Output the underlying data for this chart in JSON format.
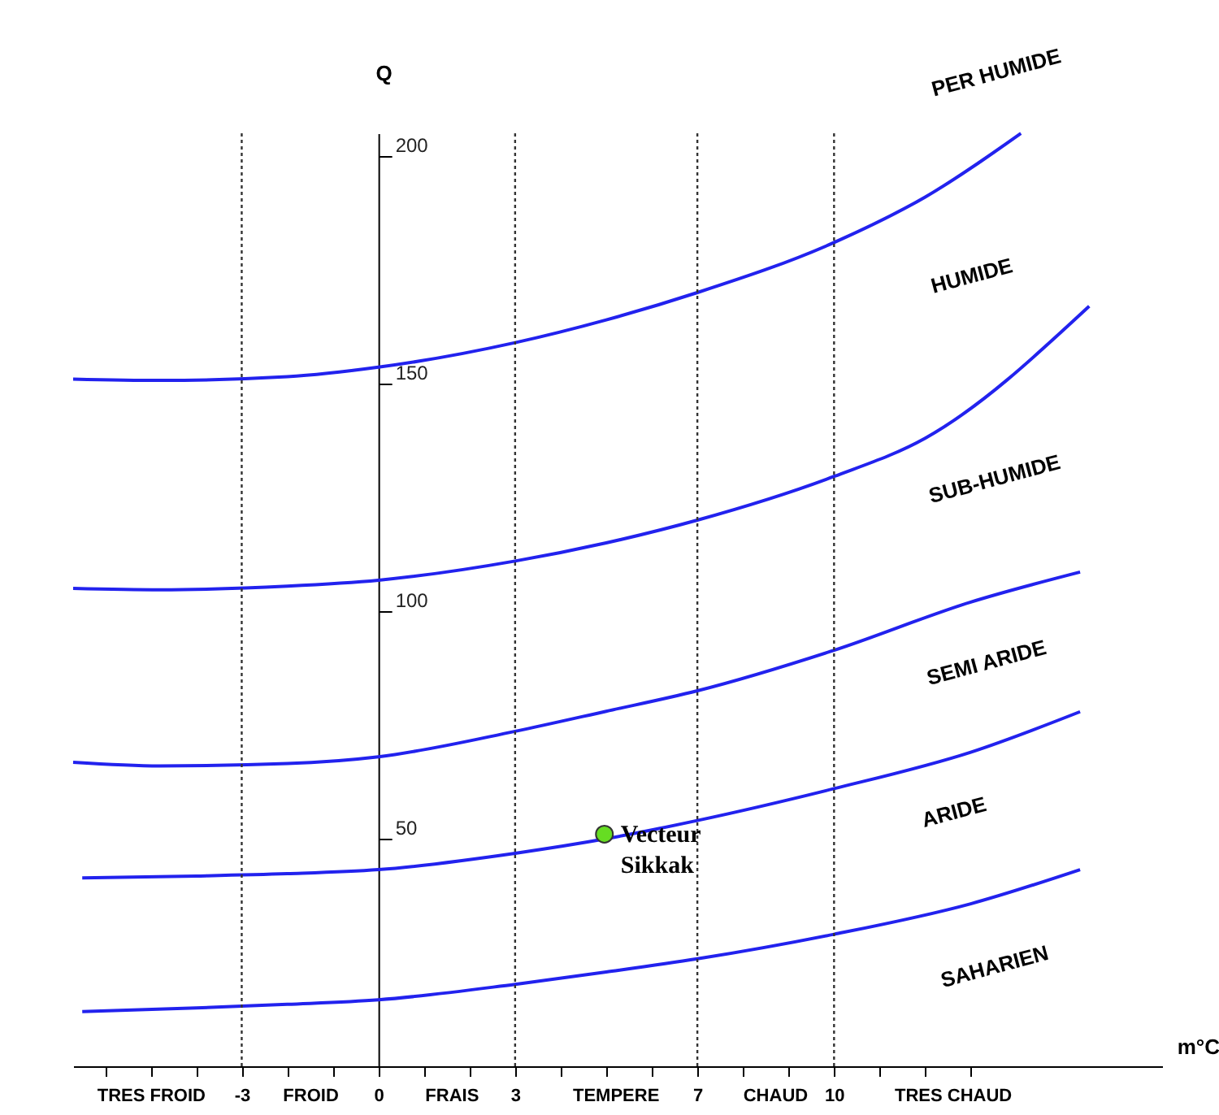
{
  "chart_data": {
    "type": "line",
    "xlabel": "m°C",
    "ylabel": "Q",
    "xlim": [
      -6.7,
      17.2
    ],
    "ylim": [
      0,
      205
    ],
    "xticks": [
      {
        "value": -6,
        "label": null
      },
      {
        "value": -5,
        "label": "TRES FROID"
      },
      {
        "value": -4,
        "label": null
      },
      -3,
      {
        "value": -2,
        "label": null
      },
      {
        "value": -1,
        "label": null
      },
      0,
      {
        "value": 1,
        "label": null
      },
      {
        "value": 2,
        "label": null
      },
      3,
      {
        "value": 4,
        "label": null
      },
      {
        "value": 5,
        "label": null
      },
      {
        "value": 6,
        "label": null
      },
      7,
      {
        "value": 8,
        "label": null
      },
      {
        "value": 9,
        "label": null
      },
      10,
      {
        "value": 11,
        "label": null
      },
      {
        "value": 12,
        "label": null
      },
      {
        "value": 13,
        "label": null
      },
      {
        "value": -1.5,
        "label": "FROID"
      },
      {
        "value": 1.6,
        "label": "FRAIS"
      },
      {
        "value": 5.2,
        "label": "TEMPERE"
      },
      {
        "value": 8.7,
        "label": "CHAUD"
      },
      {
        "value": 12.6,
        "label": "TRES CHAUD"
      }
    ],
    "yticks": [
      50,
      100,
      150,
      200
    ],
    "grid": false,
    "legend": false,
    "marker": "none",
    "line_style": "solid",
    "series": [
      {
        "color": "#2222ee",
        "x": [
          -6.7,
          -4.8,
          -2,
          0,
          3,
          5,
          7,
          10,
          12,
          14.1
        ],
        "values": [
          151,
          150.7,
          151.5,
          153.6,
          159,
          164,
          170,
          181,
          191,
          205
        ]
      },
      {
        "color": "#2222ee",
        "x": [
          -6.7,
          -4.8,
          -2,
          0,
          3,
          5,
          7,
          10,
          12,
          15.6
        ],
        "values": [
          105,
          104.7,
          105.5,
          106.8,
          111,
          115,
          120,
          129.6,
          138,
          167
        ]
      },
      {
        "color": "#2222ee",
        "x": [
          -6.7,
          -4.8,
          -2,
          0,
          3,
          5,
          7,
          10,
          13,
          15.4
        ],
        "values": [
          66.8,
          66,
          66.5,
          68,
          73.6,
          78,
          82.5,
          91.4,
          102,
          108.6
        ]
      },
      {
        "color": "#2222ee",
        "x": [
          -6.5,
          -4,
          -2,
          0,
          3,
          5,
          7,
          10,
          13,
          15.4
        ],
        "values": [
          41.4,
          41.8,
          42.3,
          43.2,
          46.8,
          50,
          54,
          61,
          69,
          77.9
        ]
      },
      {
        "color": "#2222ee",
        "x": [
          -6.5,
          -4,
          -2,
          0,
          3,
          5,
          7,
          10,
          13,
          15.4
        ],
        "values": [
          12,
          12.8,
          13.6,
          14.6,
          18,
          20.7,
          23.6,
          29,
          35.7,
          43.2
        ]
      },
      {
        "type": "scatter",
        "marker": "circle",
        "color": "#66dd22",
        "x": [
          4.96
        ],
        "values": [
          51
        ]
      }
    ],
    "ref_lines": [
      {
        "axis": "x",
        "value": -3,
        "line_style": "dotted",
        "color": "#333333"
      },
      {
        "axis": "x",
        "value": 3,
        "line_style": "dotted",
        "color": "#333333"
      },
      {
        "axis": "x",
        "value": 7,
        "line_style": "dotted",
        "color": "#333333"
      },
      {
        "axis": "x",
        "value": 10,
        "line_style": "dotted",
        "color": "#333333"
      }
    ],
    "annotations": [
      {
        "text": "Vecteur Sikkak",
        "x": 4.96,
        "y": 51
      },
      "PER HUMIDE",
      "HUMIDE",
      "SUB-HUMIDE",
      "SEMI ARIDE",
      "ARIDE",
      "SAHARIEN"
    ]
  }
}
